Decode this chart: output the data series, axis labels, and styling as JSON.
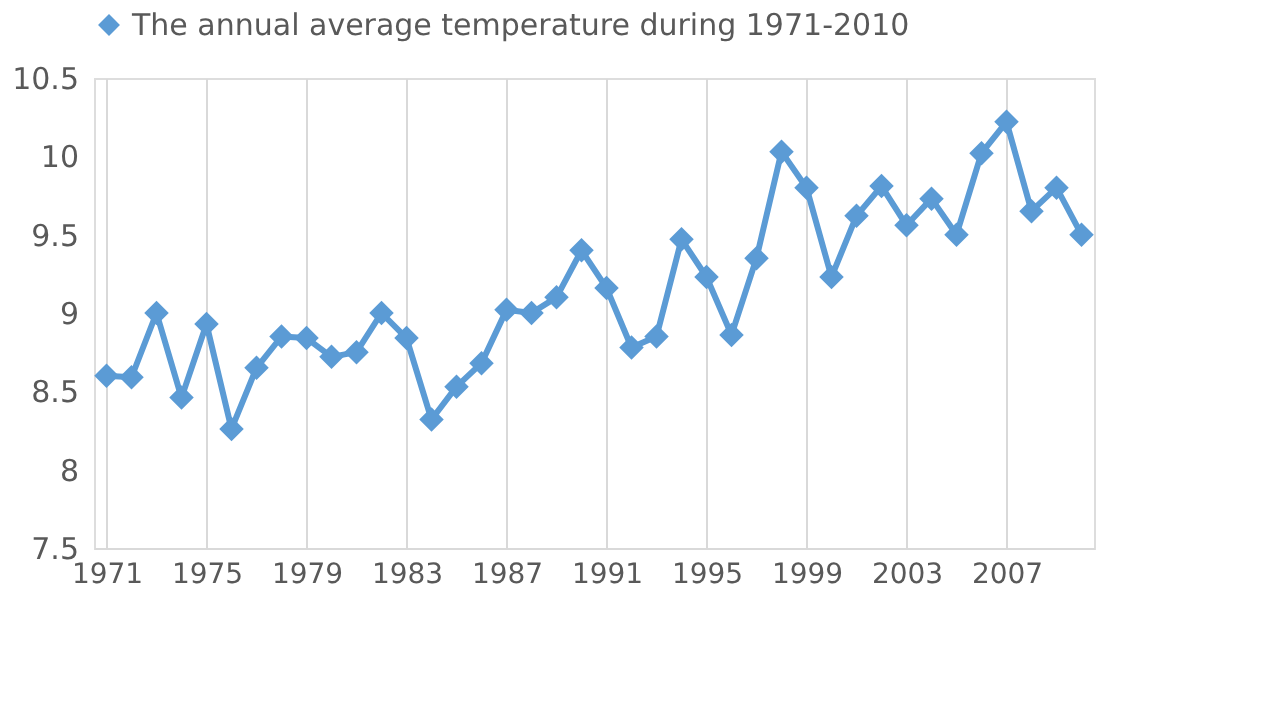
{
  "chart_data": {
    "type": "line",
    "categories": [
      "1971",
      null,
      null,
      null,
      "1975",
      null,
      null,
      null,
      "1979",
      null,
      null,
      null,
      "1983",
      null,
      null,
      null,
      "1987",
      null,
      null,
      null,
      "1991",
      null,
      null,
      null,
      "1995",
      null,
      null,
      null,
      "1999",
      null,
      null,
      null,
      "2003",
      null,
      null,
      null,
      "2007",
      null,
      null,
      null
    ],
    "series": [
      {
        "name": "The annual average temperature during 1971-2010",
        "color": "#5b9bd5",
        "values": [
          8.6,
          8.59,
          9.0,
          8.46,
          8.93,
          8.26,
          8.65,
          8.85,
          8.84,
          8.72,
          8.75,
          9.0,
          8.84,
          8.32,
          8.53,
          8.68,
          9.02,
          9.0,
          9.1,
          9.4,
          9.16,
          8.78,
          8.85,
          9.47,
          9.23,
          8.86,
          9.35,
          10.03,
          9.8,
          9.23,
          9.62,
          9.81,
          9.56,
          9.73,
          9.5,
          10.02,
          10.22,
          9.65,
          9.8,
          9.5
        ]
      }
    ],
    "ylim": [
      7.5,
      10.5
    ],
    "yticks": [
      7.5,
      8,
      8.5,
      9,
      9.5,
      10,
      10.5
    ],
    "grid": "x",
    "legend": "top",
    "marker": "diamond",
    "line_style": "solid"
  }
}
